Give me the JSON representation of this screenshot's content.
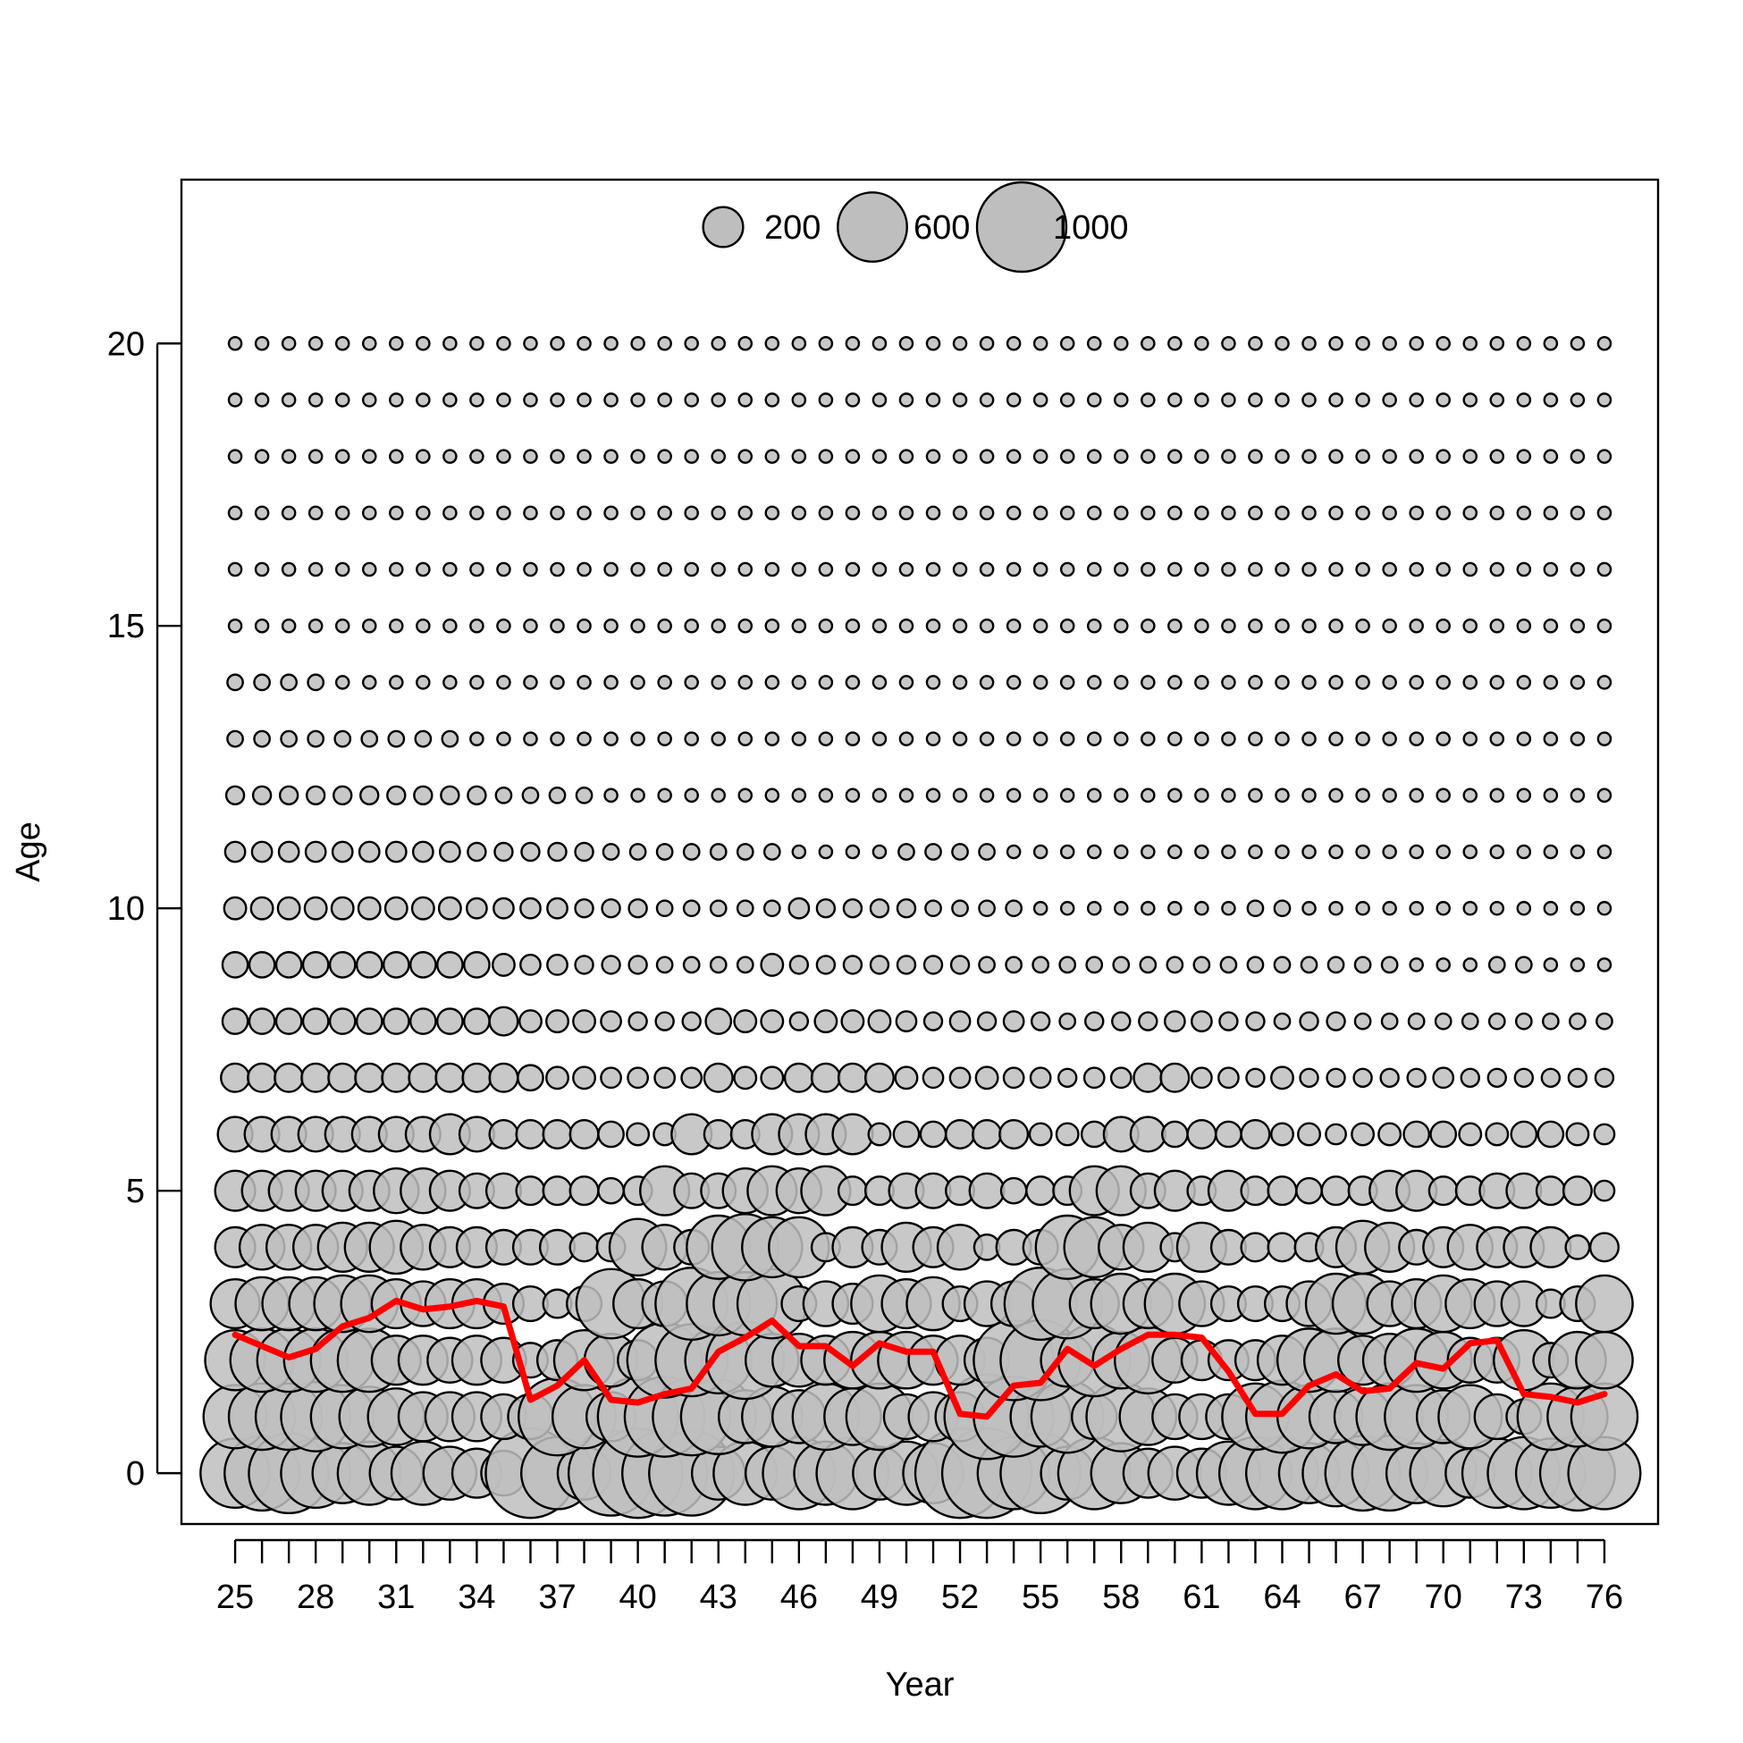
{
  "chart_data": {
    "type": "scatter",
    "subtype": "bubble",
    "xlabel": "Year",
    "ylabel": "Age",
    "xlim": [
      23.0,
      78.0
    ],
    "ylim": [
      -0.9,
      22.9
    ],
    "x_tick_labels": [
      "25",
      "28",
      "31",
      "34",
      "37",
      "40",
      "43",
      "46",
      "49",
      "52",
      "55",
      "58",
      "61",
      "64",
      "67",
      "70",
      "73",
      "76"
    ],
    "y_tick_labels": [
      "0",
      "5",
      "10",
      "15",
      "20"
    ],
    "years": [
      25,
      26,
      27,
      28,
      29,
      30,
      31,
      32,
      33,
      34,
      35,
      36,
      37,
      38,
      39,
      40,
      41,
      42,
      43,
      44,
      45,
      46,
      47,
      48,
      49,
      50,
      51,
      52,
      53,
      54,
      55,
      56,
      57,
      58,
      59,
      60,
      61,
      62,
      63,
      64,
      65,
      66,
      67,
      68,
      69,
      70,
      71,
      72,
      73,
      74,
      75,
      76
    ],
    "ages": [
      0,
      1,
      2,
      3,
      4,
      5,
      6,
      7,
      8,
      9,
      10,
      11,
      12,
      13,
      14,
      15,
      16,
      17,
      18,
      19,
      20
    ],
    "bubble_fill": "#bebebe",
    "bubble_stroke": "#000000",
    "legend": {
      "placement": "top-center",
      "entries": [
        {
          "label": "200",
          "value": 200
        },
        {
          "label": "600",
          "value": 600
        },
        {
          "label": "1000",
          "value": 1000
        }
      ]
    },
    "grid": false,
    "series": [
      {
        "name": "",
        "type": "line",
        "color": "#ff0000",
        "x": [
          25,
          26,
          27,
          28,
          29,
          30,
          31,
          32,
          33,
          34,
          35,
          36,
          37,
          38,
          39,
          40,
          41,
          42,
          43,
          44,
          45,
          46,
          47,
          48,
          49,
          50,
          51,
          52,
          53,
          54,
          55,
          56,
          57,
          58,
          59,
          60,
          61,
          62,
          63,
          64,
          65,
          66,
          67,
          68,
          69,
          70,
          71,
          72,
          73,
          74,
          75,
          76
        ],
        "y": [
          2.45,
          2.25,
          2.05,
          2.2,
          2.6,
          2.75,
          3.05,
          2.9,
          2.95,
          3.05,
          2.95,
          1.3,
          1.55,
          2.0,
          1.3,
          1.25,
          1.4,
          1.5,
          2.15,
          2.4,
          2.7,
          2.25,
          2.25,
          1.9,
          2.3,
          2.15,
          2.15,
          1.05,
          1.0,
          1.55,
          1.6,
          2.2,
          1.9,
          2.2,
          2.45,
          2.45,
          2.4,
          1.8,
          1.05,
          1.05,
          1.55,
          1.75,
          1.45,
          1.5,
          1.95,
          1.85,
          2.3,
          2.35,
          1.4,
          1.35,
          1.25,
          1.4
        ]
      }
    ],
    "bubbles_by_age": {
      "0": [
        600,
        700,
        800,
        600,
        450,
        500,
        350,
        500,
        350,
        300,
        250,
        1000,
        650,
        350,
        900,
        1000,
        900,
        900,
        350,
        500,
        350,
        650,
        500,
        650,
        350,
        500,
        450,
        1000,
        1000,
        650,
        800,
        350,
        650,
        450,
        300,
        350,
        300,
        500,
        650,
        650,
        450,
        550,
        700,
        700,
        450,
        550,
        300,
        600,
        650,
        600,
        700,
        650
      ],
      "1": [
        500,
        550,
        550,
        600,
        500,
        450,
        400,
        300,
        300,
        300,
        250,
        250,
        750,
        500,
        300,
        800,
        800,
        750,
        700,
        350,
        450,
        350,
        550,
        400,
        550,
        250,
        300,
        300,
        900,
        800,
        450,
        650,
        250,
        600,
        400,
        250,
        250,
        250,
        550,
        650,
        500,
        350,
        400,
        550,
        500,
        350,
        500,
        250,
        150,
        550,
        450,
        550
      ],
      "2": [
        450,
        500,
        500,
        500,
        500,
        500,
        300,
        300,
        250,
        300,
        250,
        150,
        200,
        450,
        350,
        200,
        700,
        650,
        550,
        750,
        350,
        350,
        300,
        400,
        400,
        400,
        300,
        300,
        250,
        800,
        800,
        350,
        650,
        400,
        550,
        250,
        200,
        200,
        200,
        300,
        500,
        500,
        300,
        350,
        500,
        400,
        250,
        250,
        450,
        150,
        400,
        400
      ],
      "3": [
        300,
        350,
        350,
        350,
        400,
        400,
        300,
        250,
        300,
        300,
        200,
        150,
        100,
        150,
        600,
        300,
        250,
        650,
        500,
        500,
        600,
        150,
        250,
        200,
        400,
        300,
        350,
        150,
        250,
        250,
        650,
        600,
        300,
        450,
        300,
        450,
        250,
        150,
        150,
        150,
        250,
        450,
        450,
        250,
        300,
        400,
        300,
        250,
        250,
        100,
        150,
        400
      ],
      "4": [
        200,
        250,
        250,
        250,
        300,
        300,
        350,
        250,
        200,
        200,
        150,
        150,
        150,
        100,
        100,
        400,
        250,
        150,
        500,
        550,
        450,
        450,
        100,
        200,
        150,
        300,
        200,
        250,
        80,
        150,
        150,
        500,
        450,
        250,
        300,
        100,
        300,
        150,
        100,
        100,
        100,
        200,
        350,
        300,
        150,
        200,
        250,
        200,
        200,
        200,
        70,
        100
      ],
      "5": [
        200,
        200,
        200,
        200,
        200,
        200,
        250,
        250,
        200,
        150,
        150,
        100,
        100,
        100,
        80,
        100,
        300,
        150,
        150,
        250,
        300,
        250,
        300,
        100,
        100,
        150,
        150,
        100,
        150,
        80,
        100,
        100,
        300,
        300,
        150,
        200,
        100,
        200,
        100,
        100,
        80,
        100,
        100,
        200,
        200,
        100,
        100,
        150,
        150,
        100,
        100,
        50
      ],
      "6": [
        150,
        150,
        150,
        150,
        150,
        150,
        150,
        150,
        200,
        150,
        100,
        100,
        100,
        100,
        80,
        60,
        60,
        200,
        100,
        100,
        200,
        200,
        200,
        200,
        60,
        80,
        80,
        100,
        100,
        100,
        60,
        60,
        80,
        150,
        150,
        80,
        100,
        80,
        100,
        60,
        60,
        50,
        60,
        60,
        80,
        80,
        60,
        60,
        80,
        80,
        60,
        50
      ],
      "7": [
        100,
        100,
        100,
        100,
        100,
        100,
        100,
        100,
        100,
        100,
        100,
        80,
        60,
        60,
        50,
        50,
        50,
        50,
        100,
        60,
        60,
        100,
        100,
        100,
        100,
        60,
        50,
        50,
        60,
        50,
        50,
        40,
        50,
        50,
        100,
        100,
        50,
        50,
        40,
        60,
        40,
        40,
        40,
        40,
        40,
        50,
        40,
        40,
        40,
        40,
        40,
        40
      ],
      "8": [
        80,
        80,
        80,
        80,
        80,
        80,
        80,
        80,
        80,
        80,
        100,
        60,
        60,
        60,
        50,
        40,
        40,
        40,
        80,
        60,
        60,
        40,
        60,
        60,
        60,
        50,
        40,
        50,
        40,
        50,
        40,
        30,
        40,
        40,
        40,
        50,
        50,
        40,
        40,
        30,
        40,
        40,
        30,
        30,
        30,
        30,
        30,
        30,
        30,
        30,
        30,
        30
      ],
      "9": [
        80,
        80,
        80,
        80,
        80,
        80,
        80,
        80,
        80,
        80,
        60,
        50,
        50,
        40,
        40,
        40,
        30,
        30,
        30,
        30,
        60,
        40,
        40,
        40,
        40,
        40,
        40,
        40,
        30,
        30,
        30,
        30,
        30,
        30,
        30,
        30,
        30,
        30,
        30,
        30,
        30,
        30,
        30,
        30,
        20,
        20,
        20,
        30,
        30,
        20,
        20,
        20
      ],
      "10": [
        60,
        60,
        60,
        60,
        60,
        60,
        60,
        60,
        60,
        50,
        50,
        50,
        50,
        40,
        40,
        40,
        30,
        30,
        30,
        30,
        30,
        50,
        40,
        40,
        40,
        40,
        30,
        30,
        30,
        30,
        20,
        20,
        20,
        20,
        20,
        20,
        20,
        20,
        30,
        30,
        20,
        20,
        20,
        20,
        20,
        20,
        20,
        20,
        20,
        20,
        20,
        20
      ],
      "11": [
        50,
        50,
        50,
        50,
        50,
        50,
        50,
        50,
        50,
        40,
        40,
        40,
        40,
        40,
        30,
        30,
        30,
        30,
        30,
        30,
        30,
        20,
        20,
        20,
        20,
        30,
        30,
        30,
        30,
        20,
        20,
        20,
        20,
        20,
        20,
        20,
        20,
        20,
        20,
        20,
        20,
        20,
        20,
        20,
        20,
        20,
        20,
        20,
        20,
        20,
        20,
        20
      ],
      "12": [
        40,
        40,
        40,
        40,
        40,
        40,
        40,
        40,
        40,
        40,
        30,
        30,
        30,
        30,
        20,
        20,
        20,
        20,
        20,
        20,
        20,
        20,
        20,
        20,
        20,
        20,
        20,
        20,
        20,
        20,
        20,
        20,
        20,
        20,
        20,
        20,
        20,
        20,
        20,
        20,
        20,
        20,
        20,
        20,
        20,
        20,
        20,
        20,
        20,
        20,
        20,
        20
      ],
      "13": [
        30,
        30,
        30,
        30,
        30,
        30,
        30,
        30,
        30,
        20,
        20,
        20,
        20,
        20,
        20,
        20,
        20,
        20,
        20,
        20,
        20,
        20,
        20,
        20,
        20,
        20,
        20,
        20,
        20,
        20,
        20,
        20,
        20,
        20,
        20,
        20,
        20,
        20,
        20,
        20,
        20,
        20,
        20,
        20,
        20,
        20,
        20,
        20,
        20,
        20,
        20,
        20
      ],
      "14": [
        30,
        30,
        30,
        30,
        20,
        20,
        20,
        20,
        20,
        20,
        20,
        20,
        20,
        20,
        20,
        20,
        20,
        20,
        20,
        20,
        20,
        20,
        20,
        20,
        20,
        20,
        20,
        20,
        20,
        20,
        20,
        20,
        20,
        20,
        20,
        20,
        20,
        20,
        20,
        20,
        20,
        20,
        20,
        20,
        20,
        20,
        20,
        20,
        20,
        20,
        20,
        20
      ],
      "15": [
        20,
        20,
        20,
        20,
        20,
        20,
        20,
        20,
        20,
        20,
        20,
        20,
        20,
        20,
        20,
        20,
        20,
        20,
        20,
        20,
        20,
        20,
        20,
        20,
        20,
        20,
        20,
        20,
        20,
        20,
        20,
        20,
        20,
        20,
        20,
        20,
        20,
        20,
        20,
        20,
        20,
        20,
        20,
        20,
        20,
        20,
        20,
        20,
        20,
        20,
        20,
        20
      ],
      "16": [
        20,
        20,
        20,
        20,
        20,
        20,
        20,
        20,
        20,
        20,
        20,
        20,
        20,
        20,
        20,
        20,
        20,
        20,
        20,
        20,
        20,
        20,
        20,
        20,
        20,
        20,
        20,
        20,
        20,
        20,
        20,
        20,
        20,
        20,
        20,
        20,
        20,
        20,
        20,
        20,
        20,
        20,
        20,
        20,
        20,
        20,
        20,
        20,
        20,
        20,
        20,
        20
      ],
      "17": [
        20,
        20,
        20,
        20,
        20,
        20,
        20,
        20,
        20,
        20,
        20,
        20,
        20,
        20,
        20,
        20,
        20,
        20,
        20,
        20,
        20,
        20,
        20,
        20,
        20,
        20,
        20,
        20,
        20,
        20,
        20,
        20,
        20,
        20,
        20,
        20,
        20,
        20,
        20,
        20,
        20,
        20,
        20,
        20,
        20,
        20,
        20,
        20,
        20,
        20,
        20,
        20
      ],
      "18": [
        20,
        20,
        20,
        20,
        20,
        20,
        20,
        20,
        20,
        20,
        20,
        20,
        20,
        20,
        20,
        20,
        20,
        20,
        20,
        20,
        20,
        20,
        20,
        20,
        20,
        20,
        20,
        20,
        20,
        20,
        20,
        20,
        20,
        20,
        20,
        20,
        20,
        20,
        20,
        20,
        20,
        20,
        20,
        20,
        20,
        20,
        20,
        20,
        20,
        20,
        20,
        20
      ],
      "19": [
        20,
        20,
        20,
        20,
        20,
        20,
        20,
        20,
        20,
        20,
        20,
        20,
        20,
        20,
        20,
        20,
        20,
        20,
        20,
        20,
        20,
        20,
        20,
        20,
        20,
        20,
        20,
        20,
        20,
        20,
        20,
        20,
        20,
        20,
        20,
        20,
        20,
        20,
        20,
        20,
        20,
        20,
        20,
        20,
        20,
        20,
        20,
        20,
        20,
        20,
        20,
        20
      ],
      "20": [
        20,
        20,
        20,
        20,
        20,
        20,
        20,
        20,
        20,
        20,
        20,
        20,
        20,
        20,
        20,
        20,
        20,
        20,
        20,
        20,
        20,
        20,
        20,
        20,
        20,
        20,
        20,
        20,
        20,
        20,
        20,
        20,
        20,
        20,
        20,
        20,
        20,
        20,
        20,
        20,
        20,
        20,
        20,
        20,
        20,
        20,
        20,
        20,
        20,
        20,
        20,
        20
      ]
    }
  }
}
